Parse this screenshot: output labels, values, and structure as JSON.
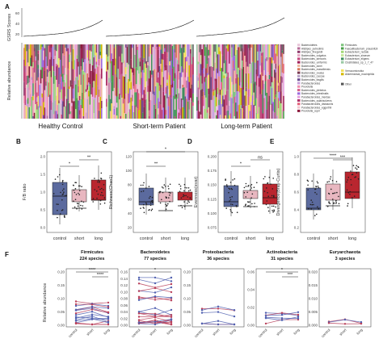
{
  "panels": {
    "A": "A",
    "B": "B",
    "C": "C",
    "D": "D",
    "E": "E",
    "F": "F"
  },
  "panelA": {
    "score_axis_label": "GSRS Scores",
    "score_ticks": [
      "60",
      "40",
      "20"
    ],
    "abundance_axis_label": "Relative abundance",
    "groups": [
      "Healthy Control",
      "Short-term Patient",
      "Long-term Patient"
    ],
    "legend_left": [
      {
        "name": "Bacteroidetes",
        "color": "#e7c5d8"
      },
      {
        "name": "Alistipes_putredinis",
        "color": "#b76e99"
      },
      {
        "name": "Alistipes_finegoldii",
        "color": "#8f3a6c"
      },
      {
        "name": "Bacteroides_vulgatus",
        "color": "#e9a7c4"
      },
      {
        "name": "Bacteroides_stercoris",
        "color": "#c4487f"
      },
      {
        "name": "Bacteroides_uniformis",
        "color": "#a2225a"
      },
      {
        "name": "Bacteroides_dorei",
        "color": "#f1b8a0"
      },
      {
        "name": "Bacteroides_massiliensis",
        "color": "#d9785a"
      },
      {
        "name": "Bacteroides_ovatus",
        "color": "#7a3b52"
      },
      {
        "name": "Bacteroides_caccae",
        "color": "#b89ec6"
      },
      {
        "name": "Bacteroides_fragilis",
        "color": "#6a4c93"
      },
      {
        "name": "Parabacteroides",
        "color": "#c9a0dc"
      },
      {
        "name": "Prevotella",
        "color": "#f08fb0"
      },
      {
        "name": "Bacteroides_plebeius",
        "color": "#d65f8a"
      },
      {
        "name": "Bacteroides_intestinalis",
        "color": "#9c6ade"
      },
      {
        "name": "Parabacteroides_merdae",
        "color": "#e8a0e0"
      },
      {
        "name": "Bacteroides_xylanisolvens",
        "color": "#b0306a"
      },
      {
        "name": "Parabacteroides_distasonis",
        "color": "#e3617a"
      },
      {
        "name": "Parabacteroides_eggerthii",
        "color": "#f5c6d0"
      },
      {
        "name": "Prevotella_copri",
        "color": "#8c1c3e"
      }
    ],
    "legend_right": [
      {
        "name": "Firmicutes",
        "color": "#7ec47e"
      },
      {
        "name": "Faecalibacterium_prausnitzii",
        "color": "#4aa04a"
      },
      {
        "name": "Eubacterium_rectale",
        "color": "#a3d977"
      },
      {
        "name": "Eubacterium_siraeum",
        "color": "#c7e89a"
      },
      {
        "name": "Eubacterium_eligens",
        "color": "#3f8f5f"
      },
      {
        "name": "Clostridiales_sp_1_7_47",
        "color": "#98c9a3"
      },
      {
        "name": "Verrucomicrobia",
        "color": "#f2e05a"
      },
      {
        "name": "Akkermansia_muciniphila",
        "color": "#d4b800"
      },
      {
        "name": "Other",
        "color": "#555555"
      }
    ]
  },
  "boxplots": [
    {
      "panel": "B",
      "ylabel": "F/B ratio",
      "yticks": [
        "2.0",
        "1.5",
        "1.0",
        "0.5",
        "0.0"
      ],
      "xticks": [
        "control",
        "short",
        "long"
      ],
      "sig": [
        {
          "text": "*",
          "pair": "control-short"
        },
        {
          "text": "**",
          "pair": "short-long"
        }
      ]
    },
    {
      "panel": "C",
      "ylabel": "Richness(Chao1)",
      "yticks": [
        "120",
        "100",
        "80",
        "60",
        "40",
        "20"
      ],
      "xticks": [
        "control",
        "short",
        "long"
      ],
      "sig": [
        {
          "text": "**",
          "pair": "control-short"
        },
        {
          "text": "*",
          "pair": "control-long"
        }
      ]
    },
    {
      "panel": "D",
      "ylabel": "Evenness(evar)",
      "yticks": [
        "0.200",
        "0.175",
        "0.150",
        "0.125",
        "0.100",
        "0.075"
      ],
      "xticks": [
        "control",
        "short",
        "long"
      ],
      "sig": [
        {
          "text": "*",
          "pair": "control-short"
        },
        {
          "text": "ns",
          "pair": "short-long"
        }
      ]
    },
    {
      "panel": "E",
      "ylabel": "Divergence(Bray-Curtis)",
      "yticks": [
        "1.0",
        "0.8",
        "0.6",
        "0.4",
        "0.2"
      ],
      "xticks": [
        "control",
        "short",
        "long"
      ],
      "sig": [
        {
          "text": "****",
          "pair": "control-long"
        },
        {
          "text": "***",
          "pair": "short-long"
        }
      ]
    }
  ],
  "panelF": {
    "ylabel": "Relative abundance",
    "xticks": [
      "control",
      "short",
      "long"
    ],
    "phyla": [
      {
        "title": "Firmicutes",
        "subtitle": "224 species",
        "yticks": [
          "0.20",
          "0.15",
          "0.10",
          "0.05",
          "0.00"
        ],
        "sig": [
          "****",
          "****"
        ]
      },
      {
        "title": "Bacteroidetes",
        "subtitle": "77 species",
        "yticks": [
          "0.16",
          "0.14",
          "0.12",
          "0.10",
          "0.08",
          "0.06",
          "0.04",
          "0.02",
          "0.00"
        ],
        "sig": [
          "*"
        ]
      },
      {
        "title": "Proteobacteria",
        "subtitle": "36 species",
        "yticks": [
          "0.20",
          "0.15",
          "0.10",
          "0.05",
          "0.00"
        ],
        "sig": []
      },
      {
        "title": "Actinobacteria",
        "subtitle": "31 species",
        "yticks": [
          "0.06",
          "0.04",
          "0.02",
          "0.00"
        ],
        "sig": [
          "*",
          "***"
        ]
      },
      {
        "title": "Euryarchaeota",
        "subtitle": "3 species",
        "yticks": [
          "0.020",
          "0.015",
          "0.010",
          "0.005",
          "0.000"
        ],
        "sig": []
      }
    ]
  },
  "colors": {
    "control": "#5b6a9e",
    "short": "#e8b7c0",
    "long": "#b9262f"
  }
}
